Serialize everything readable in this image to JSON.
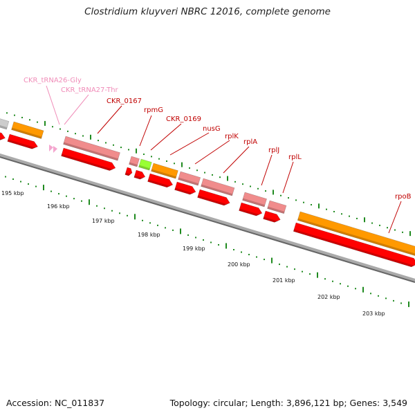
{
  "title": "Clostridium kluyveri NBRC 12016, complete genome",
  "footer": {
    "accession": "Accession: NC_011837",
    "summary": "Topology: circular; Length: 3,896,121 bp; Genes: 3,549"
  },
  "scale_labels": [
    "195 kbp",
    "196 kbp",
    "197 kbp",
    "198 kbp",
    "199 kbp",
    "200 kbp",
    "201 kbp",
    "202 kbp",
    "203 kbp"
  ],
  "feature_labels": [
    {
      "text": "CKR_tRNA26-Gly",
      "kind": "trna"
    },
    {
      "text": "CKR_tRNA27-Thr",
      "kind": "trna"
    },
    {
      "text": "CKR_0167",
      "kind": "gene"
    },
    {
      "text": "rpmG",
      "kind": "gene"
    },
    {
      "text": "CKR_0169",
      "kind": "gene"
    },
    {
      "text": "nusG",
      "kind": "gene"
    },
    {
      "text": "rplK",
      "kind": "gene"
    },
    {
      "text": "rplA",
      "kind": "gene"
    },
    {
      "text": "rplJ",
      "kind": "gene"
    },
    {
      "text": "rplL",
      "kind": "gene"
    },
    {
      "text": "rpoB",
      "kind": "gene"
    }
  ],
  "colors": {
    "cds": "#ff0000",
    "gene_pink": "#f08c8c",
    "orange": "#ff9900",
    "green": "#99ff33",
    "gray": "#cccccc",
    "trna": "#f4a6cf",
    "tick": "#1f8a1f",
    "backbone": "#777777"
  }
}
